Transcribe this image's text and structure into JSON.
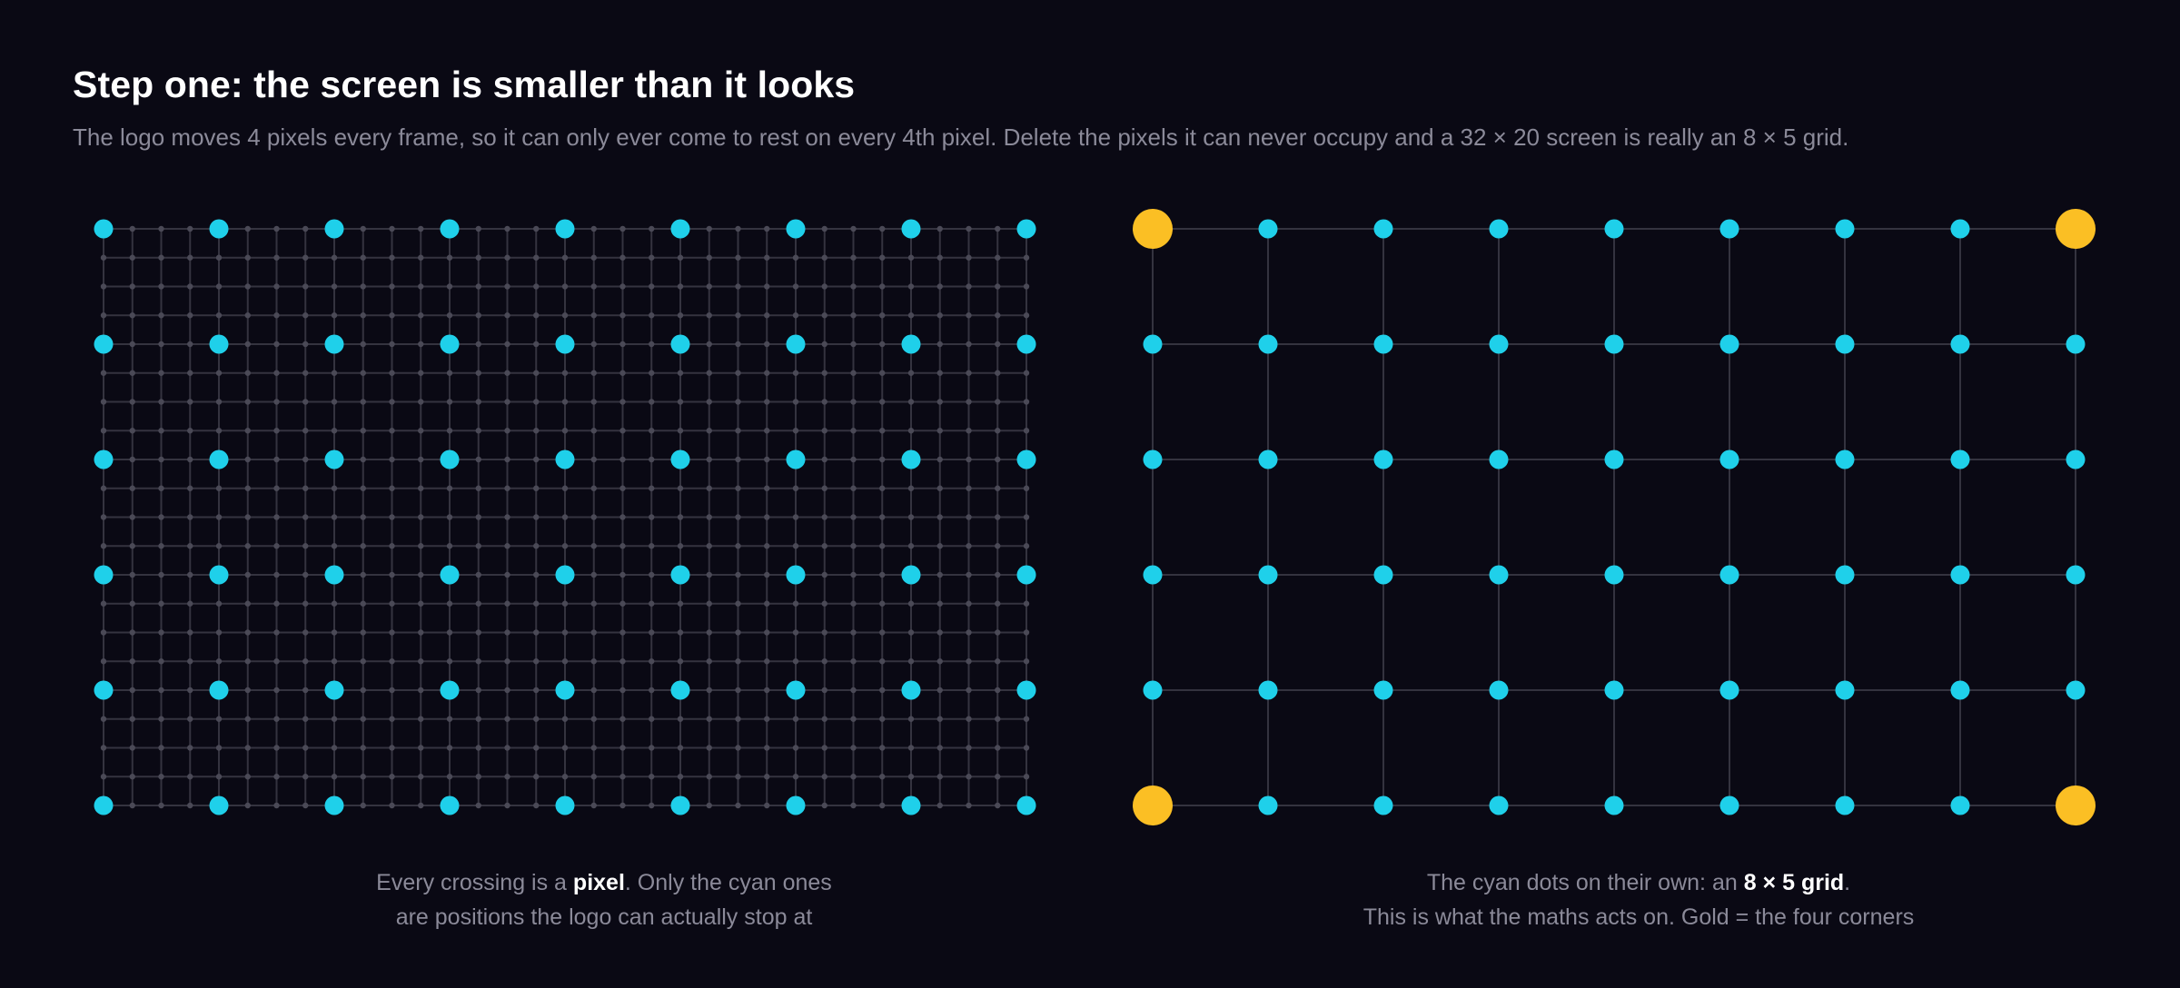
{
  "header": {
    "title": "Step one: the screen is smaller than it looks",
    "subtitle": "The logo moves 4 pixels every frame, so it can only ever come to rest on every 4th pixel. Delete the pixels it can never occupy and a 32 × 20 screen is really an 8 × 5 grid."
  },
  "left_diagram": {
    "pixel_columns": 32,
    "pixel_rows": 20,
    "step": 4,
    "caption": {
      "line1_pre": "Every crossing is a ",
      "line1_bold": "pixel",
      "line1_post": ". Only the cyan ones",
      "line2": "are positions the logo can actually stop at"
    }
  },
  "right_diagram": {
    "grid_columns": 8,
    "grid_rows": 5,
    "corners_highlighted": true,
    "caption": {
      "line1_pre": "The cyan dots on their own: an ",
      "line1_bold": "8 × 5 grid",
      "line1_post": ".",
      "line2": "This is what the maths acts on. Gold = the four corners"
    }
  },
  "colors": {
    "background": "#0a0914",
    "cyan": "#1fd0ea",
    "gold": "#fbbf24",
    "grid_line": "#34333f",
    "pixel_dot": "#4a4956",
    "muted_text": "#8b8a99"
  }
}
